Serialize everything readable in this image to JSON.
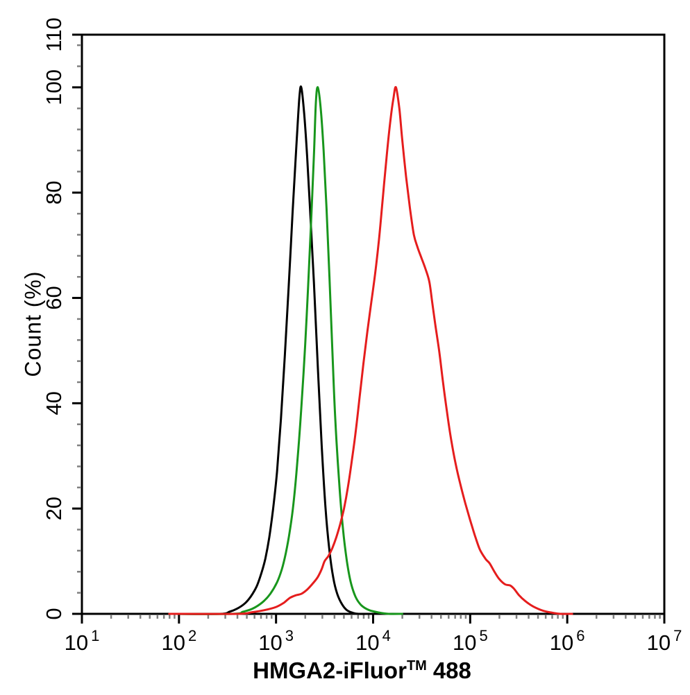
{
  "figure": {
    "background": "#ffffff",
    "axis_color": "#000000",
    "minor_tick_color": "#7f7f7f"
  },
  "chart_data": {
    "type": "line",
    "title": "",
    "xlabel": {
      "text": "HMGA2-iFluor",
      "tm": "TM",
      "suffix": "488"
    },
    "ylabel": "Count  (%)",
    "x_scale": "log10",
    "x_range_log": [
      1,
      7
    ],
    "x_tick_base": "10",
    "x_tick_exponents": [
      "1",
      "2",
      "3",
      "4",
      "5",
      "6",
      "7"
    ],
    "x_minor_ticks": "log-decade subdivisions 2-9",
    "y_range": [
      0,
      110
    ],
    "y_major_ticks": [
      "0",
      "20",
      "40",
      "60",
      "80",
      "100",
      "110"
    ],
    "y_major_values": [
      0,
      20,
      40,
      60,
      80,
      100,
      110
    ],
    "y_minor_step": 4,
    "grid": false,
    "legend_position": "none",
    "series": [
      {
        "name": "black",
        "color": "#000000",
        "peak_x_log": 3.26,
        "peak_pct": 100,
        "points": [
          [
            1.9,
            0
          ],
          [
            2.42,
            0
          ],
          [
            2.52,
            0.4
          ],
          [
            2.6,
            1
          ],
          [
            2.68,
            2
          ],
          [
            2.74,
            3.3
          ],
          [
            2.8,
            5.2
          ],
          [
            2.85,
            7.8
          ],
          [
            2.89,
            10.5
          ],
          [
            2.93,
            14.5
          ],
          [
            2.97,
            20
          ],
          [
            3.01,
            27
          ],
          [
            3.05,
            37
          ],
          [
            3.09,
            49
          ],
          [
            3.13,
            62
          ],
          [
            3.17,
            76
          ],
          [
            3.21,
            89
          ],
          [
            3.24,
            98
          ],
          [
            3.26,
            100
          ],
          [
            3.29,
            95
          ],
          [
            3.32,
            87
          ],
          [
            3.35,
            77
          ],
          [
            3.39,
            63
          ],
          [
            3.43,
            47
          ],
          [
            3.47,
            32
          ],
          [
            3.51,
            20
          ],
          [
            3.55,
            12
          ],
          [
            3.59,
            6.8
          ],
          [
            3.63,
            3.8
          ],
          [
            3.68,
            1.8
          ],
          [
            3.73,
            0.7
          ],
          [
            3.79,
            0.2
          ],
          [
            3.85,
            0
          ],
          [
            4.0,
            0
          ]
        ]
      },
      {
        "name": "green",
        "color": "#18961c",
        "peak_x_log": 3.4,
        "peak_pct": 100,
        "points": [
          [
            1.9,
            0
          ],
          [
            2.55,
            0
          ],
          [
            2.66,
            0.4
          ],
          [
            2.76,
            1
          ],
          [
            2.86,
            2.2
          ],
          [
            2.94,
            3.8
          ],
          [
            3.01,
            6
          ],
          [
            3.06,
            8.5
          ],
          [
            3.1,
            11.5
          ],
          [
            3.14,
            15.5
          ],
          [
            3.18,
            21
          ],
          [
            3.22,
            29
          ],
          [
            3.26,
            39
          ],
          [
            3.3,
            51
          ],
          [
            3.33,
            62
          ],
          [
            3.36,
            74
          ],
          [
            3.39,
            87
          ],
          [
            3.41,
            97
          ],
          [
            3.43,
            100
          ],
          [
            3.46,
            96
          ],
          [
            3.49,
            88
          ],
          [
            3.52,
            77
          ],
          [
            3.55,
            64
          ],
          [
            3.58,
            50
          ],
          [
            3.61,
            37
          ],
          [
            3.65,
            25
          ],
          [
            3.69,
            16
          ],
          [
            3.73,
            10
          ],
          [
            3.77,
            6
          ],
          [
            3.82,
            3.2
          ],
          [
            3.88,
            1.6
          ],
          [
            3.96,
            0.7
          ],
          [
            4.06,
            0.25
          ],
          [
            4.16,
            0
          ],
          [
            4.3,
            0
          ]
        ]
      },
      {
        "name": "red",
        "color": "#e51d1d",
        "peak_x_log": 4.235,
        "peak_pct": 100,
        "points": [
          [
            1.9,
            0
          ],
          [
            2.6,
            0
          ],
          [
            2.75,
            0.3
          ],
          [
            2.88,
            0.7
          ],
          [
            3.0,
            1.3
          ],
          [
            3.08,
            2.1
          ],
          [
            3.14,
            3.0
          ],
          [
            3.2,
            3.5
          ],
          [
            3.26,
            3.8
          ],
          [
            3.32,
            4.6
          ],
          [
            3.38,
            5.8
          ],
          [
            3.43,
            7
          ],
          [
            3.47,
            8.5
          ],
          [
            3.5,
            10
          ],
          [
            3.54,
            11
          ],
          [
            3.58,
            12.5
          ],
          [
            3.62,
            14.5
          ],
          [
            3.66,
            17
          ],
          [
            3.7,
            20
          ],
          [
            3.74,
            24
          ],
          [
            3.78,
            29
          ],
          [
            3.82,
            34.5
          ],
          [
            3.86,
            41
          ],
          [
            3.9,
            47.5
          ],
          [
            3.94,
            53.5
          ],
          [
            3.98,
            59
          ],
          [
            4.02,
            64.5
          ],
          [
            4.06,
            71
          ],
          [
            4.1,
            79
          ],
          [
            4.14,
            87
          ],
          [
            4.18,
            94
          ],
          [
            4.21,
            98
          ],
          [
            4.235,
            100
          ],
          [
            4.27,
            96
          ],
          [
            4.3,
            90
          ],
          [
            4.34,
            83
          ],
          [
            4.38,
            77
          ],
          [
            4.42,
            72
          ],
          [
            4.46,
            69.5
          ],
          [
            4.5,
            67.5
          ],
          [
            4.54,
            65.5
          ],
          [
            4.58,
            63
          ],
          [
            4.61,
            59
          ],
          [
            4.64,
            55
          ],
          [
            4.68,
            50
          ],
          [
            4.72,
            44
          ],
          [
            4.76,
            38.5
          ],
          [
            4.8,
            33.5
          ],
          [
            4.85,
            28.5
          ],
          [
            4.9,
            24.5
          ],
          [
            4.95,
            21
          ],
          [
            5.0,
            17.8
          ],
          [
            5.05,
            14.8
          ],
          [
            5.1,
            12.2
          ],
          [
            5.16,
            10.4
          ],
          [
            5.2,
            9.6
          ],
          [
            5.25,
            8
          ],
          [
            5.3,
            6.6
          ],
          [
            5.36,
            5.6
          ],
          [
            5.41,
            5.4
          ],
          [
            5.45,
            4.8
          ],
          [
            5.5,
            3.6
          ],
          [
            5.57,
            2.4
          ],
          [
            5.65,
            1.4
          ],
          [
            5.75,
            0.6
          ],
          [
            5.85,
            0.2
          ],
          [
            5.93,
            0
          ],
          [
            6.05,
            0
          ]
        ]
      }
    ]
  }
}
